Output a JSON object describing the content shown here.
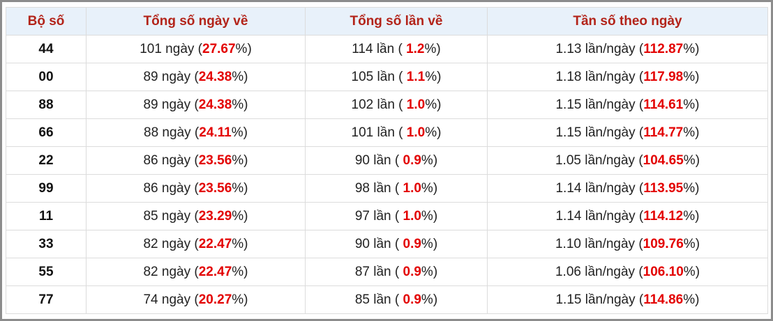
{
  "table": {
    "headers": [
      "Bộ số",
      "Tổng số ngày về",
      "Tổng số lần về",
      "Tần số theo ngày"
    ],
    "rows": [
      [
        "44",
        [
          "101 ngày (",
          "27.67",
          "%)"
        ],
        [
          "114 lần ( ",
          "1.2",
          "%)"
        ],
        [
          "1.13 lần/ngày (",
          "112.87",
          "%)"
        ]
      ],
      [
        "00",
        [
          "89 ngày (",
          "24.38",
          "%)"
        ],
        [
          "105 lần ( ",
          "1.1",
          "%)"
        ],
        [
          "1.18 lần/ngày (",
          "117.98",
          "%)"
        ]
      ],
      [
        "88",
        [
          "89 ngày (",
          "24.38",
          "%)"
        ],
        [
          "102 lần ( ",
          "1.0",
          "%)"
        ],
        [
          "1.15 lần/ngày (",
          "114.61",
          "%)"
        ]
      ],
      [
        "66",
        [
          "88 ngày (",
          "24.11",
          "%)"
        ],
        [
          "101 lần ( ",
          "1.0",
          "%)"
        ],
        [
          "1.15 lần/ngày (",
          "114.77",
          "%)"
        ]
      ],
      [
        "22",
        [
          "86 ngày (",
          "23.56",
          "%)"
        ],
        [
          "90 lần ( ",
          "0.9",
          "%)"
        ],
        [
          "1.05 lần/ngày (",
          "104.65",
          "%)"
        ]
      ],
      [
        "99",
        [
          "86 ngày (",
          "23.56",
          "%)"
        ],
        [
          "98 lần ( ",
          "1.0",
          "%)"
        ],
        [
          "1.14 lần/ngày (",
          "113.95",
          "%)"
        ]
      ],
      [
        "11",
        [
          "85 ngày (",
          "23.29",
          "%)"
        ],
        [
          "97 lần ( ",
          "1.0",
          "%)"
        ],
        [
          "1.14 lần/ngày (",
          "114.12",
          "%)"
        ]
      ],
      [
        "33",
        [
          "82 ngày (",
          "22.47",
          "%)"
        ],
        [
          "90 lần ( ",
          "0.9",
          "%)"
        ],
        [
          "1.10 lần/ngày (",
          "109.76",
          "%)"
        ]
      ],
      [
        "55",
        [
          "82 ngày (",
          "22.47",
          "%)"
        ],
        [
          "87 lần ( ",
          "0.9",
          "%)"
        ],
        [
          "1.06 lần/ngày (",
          "106.10",
          "%)"
        ]
      ],
      [
        "77",
        [
          "74 ngày (",
          "20.27",
          "%)"
        ],
        [
          "85 lần ( ",
          "0.9",
          "%)"
        ],
        [
          "1.15 lần/ngày (",
          "114.86",
          "%)"
        ]
      ]
    ]
  }
}
